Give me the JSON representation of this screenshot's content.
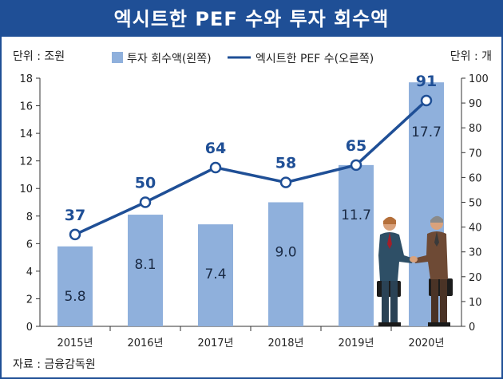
{
  "header": {
    "title": "엑시트한 PEF 수와 투자 회수액"
  },
  "units": {
    "left": "단위 : 조원",
    "right": "단위 : 개"
  },
  "source": "자료 : 금융감독원",
  "colors": {
    "bar": "#8fb0dc",
    "line": "#1f4f96",
    "title_bg": "#1f4f96"
  },
  "chart_data": {
    "type": "bar",
    "categories": [
      "2015년",
      "2016년",
      "2017년",
      "2018년",
      "2019년",
      "2020년"
    ],
    "series": [
      {
        "name": "투자 회수액(왼쪽)",
        "type": "bar",
        "axis": "left",
        "values": [
          5.8,
          8.1,
          7.4,
          9.0,
          11.7,
          17.7
        ],
        "labels": [
          "5.8",
          "8.1",
          "7.4",
          "9.0",
          "11.7",
          "17.7"
        ]
      },
      {
        "name": "엑시트한 PEF 수(오른쪽)",
        "type": "line",
        "axis": "right",
        "values": [
          37,
          50,
          64,
          58,
          65,
          91
        ],
        "labels": [
          "37",
          "50",
          "64",
          "58",
          "65",
          "91"
        ]
      }
    ],
    "y_left": {
      "range": [
        0,
        18
      ],
      "ticks": [
        "0",
        "2",
        "4",
        "6",
        "8",
        "10",
        "12",
        "14",
        "16",
        "18"
      ]
    },
    "y_right": {
      "range": [
        0,
        100
      ],
      "ticks": [
        "0",
        "10",
        "20",
        "30",
        "40",
        "50",
        "60",
        "70",
        "80",
        "90",
        "100"
      ]
    },
    "grid": false,
    "legend_position": "top-center"
  },
  "illustration": {
    "name": "handshake-businessmen-icon"
  }
}
